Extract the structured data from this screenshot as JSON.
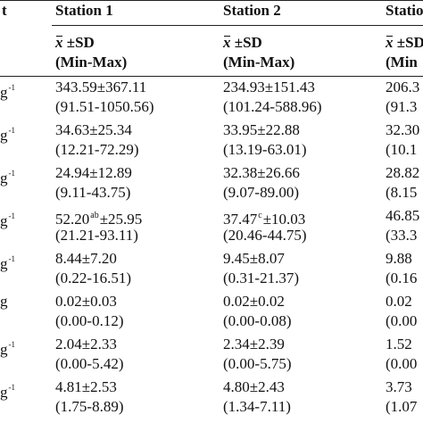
{
  "header": {
    "first_col": "t",
    "stations": [
      "Station 1",
      "Station 2",
      "Statio"
    ]
  },
  "subheader": {
    "stat_symbol": "x",
    "stat_suffix": " ±SD",
    "range_label": "(Min-Max)",
    "col3_stat_symbol": "x",
    "col3_stat_suffix": " ±SD",
    "col3_range_label": "(Min"
  },
  "rows": [
    {
      "unit": "g",
      "exp": "-1",
      "s1_mean": "343.59±367.11",
      "s1_range": "(91.51-1050.56)",
      "s2_mean": "234.93±151.43",
      "s2_range": "(101.24-588.96)",
      "s3_mean": "206.3",
      "s3_range": "(91.3"
    },
    {
      "unit": "g",
      "exp": "-1",
      "s1_mean": "34.63±25.34",
      "s1_range": "(12.21-72.29)",
      "s2_mean": "33.95±22.88",
      "s2_range": "(13.19-63.01)",
      "s3_mean": "32.30",
      "s3_range": "(10.1"
    },
    {
      "unit": "g",
      "exp": "-1",
      "s1_mean": "24.94±12.89",
      "s1_range": "(9.11-43.75)",
      "s2_mean": "32.38±26.66",
      "s2_range": "(9.07-89.00)",
      "s3_mean": "28.82",
      "s3_range": "(8.15"
    },
    {
      "unit": "g",
      "exp": "-1",
      "s1_mean_value": "52.20",
      "s1_mean_sup": "ab",
      "s1_mean_sd": "±25.95",
      "s1_range": "(21.21-93.11)",
      "s2_mean_value": "37.47",
      "s2_mean_sup": "c",
      "s2_mean_sd": "±10.03",
      "s2_range": "(20.46-44.75)",
      "s3_mean": "46.85",
      "s3_range": "(33.3"
    },
    {
      "unit": "g",
      "exp": "-1",
      "s1_mean": "8.44±7.20",
      "s1_range": "(0.22-16.51)",
      "s2_mean": "9.45±8.07",
      "s2_range": "(0.31-21.37)",
      "s3_mean": "9.88",
      "s3_range": "(0.16"
    },
    {
      "unit": "g",
      "exp": "",
      "s1_mean": "0.02±0.03",
      "s1_range": "(0.00-0.12)",
      "s2_mean": "0.02±0.02",
      "s2_range": "(0.00-0.08)",
      "s3_mean": "0.02",
      "s3_range": "(0.00"
    },
    {
      "unit": "g",
      "exp": "-1",
      "s1_mean": "2.04±2.33",
      "s1_range": "(0.00-5.42)",
      "s2_mean": "2.34±2.39",
      "s2_range": "(0.00-5.75)",
      "s3_mean": "1.52",
      "s3_range": "(0.00"
    },
    {
      "unit": "g",
      "exp": "-1",
      "s1_mean": "4.81±2.53",
      "s1_range": "(1.75-8.89)",
      "s2_mean": "4.80±2.43",
      "s2_range": "(1.34-7.11)",
      "s3_mean": "3.73",
      "s3_range": "(1.07"
    }
  ]
}
